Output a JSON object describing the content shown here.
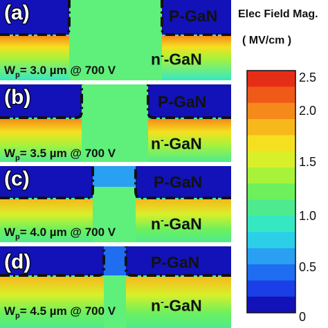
{
  "colorbar": {
    "title": "Elec Field Mag.",
    "unit": "( MV/cm )",
    "ticks": [
      "2.5",
      "2.0",
      "1.5",
      "1.0",
      "0.5",
      "0"
    ],
    "colors": [
      "#1212b8",
      "#1a3fe6",
      "#1f6df0",
      "#29a0f2",
      "#2ccfe8",
      "#35e8c2",
      "#4deb8e",
      "#6ef05c",
      "#a8f23a",
      "#d8f02a",
      "#f5e020",
      "#f7b81c",
      "#f58a1a",
      "#ef5a18",
      "#e62e16"
    ]
  },
  "panels": [
    {
      "label": "(a)",
      "p_gan": "P-GaN",
      "n_gan": "n",
      "n_sup": "-",
      "n_tail": "-GaN",
      "wp_label": "W",
      "wp_sub": "p",
      "wp_value": "= 3.0 µm @ 700 V",
      "gap_fraction": 0.4
    },
    {
      "label": "(b)",
      "p_gan": "P-GaN",
      "n_gan": "n",
      "n_sup": "-",
      "n_tail": "-GaN",
      "wp_label": "W",
      "wp_sub": "p",
      "wp_value": "= 3.5 µm @ 700 V",
      "gap_fraction": 0.28
    },
    {
      "label": "(c)",
      "p_gan": "P-GaN",
      "n_gan": "n",
      "n_sup": "-",
      "n_tail": "-GaN",
      "wp_label": "W",
      "wp_sub": "p",
      "wp_value": "= 4.0 µm @ 700 V",
      "gap_fraction": 0.18
    },
    {
      "label": "(d)",
      "p_gan": "P-GaN",
      "n_gan": "n",
      "n_sup": "-",
      "n_tail": "-GaN",
      "wp_label": "W",
      "wp_sub": "p",
      "wp_value": "= 4.5 µm @ 700 V",
      "gap_fraction": 0.09
    }
  ]
}
